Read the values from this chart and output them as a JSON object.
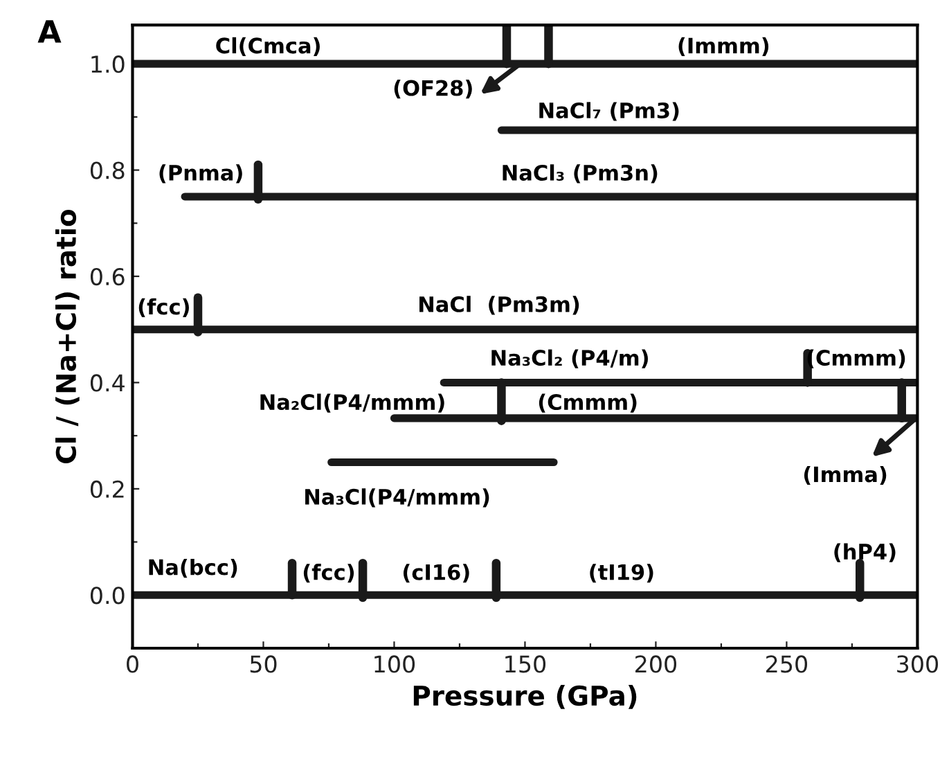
{
  "chart_data": {
    "type": "line",
    "xlabel": "Pressure (GPa)",
    "ylabel": "Cl / (Na+Cl) ratio",
    "xlim": [
      0,
      300
    ],
    "ylim": [
      -0.1,
      1.073
    ],
    "xticks": [
      0,
      {
        "value": 25,
        "label": null
      },
      50,
      {
        "value": 75,
        "label": null
      },
      100,
      {
        "value": 125,
        "label": null
      },
      150,
      {
        "value": 175,
        "label": null
      },
      200,
      {
        "value": 225,
        "label": null
      },
      250,
      {
        "value": 275,
        "label": null
      },
      300
    ],
    "yticks": [
      {
        "value": 0,
        "label": "0.0"
      },
      {
        "value": 0.1,
        "label": null
      },
      {
        "value": 0.2,
        "label": "0.2"
      },
      {
        "value": 0.3,
        "label": null
      },
      {
        "value": 0.4,
        "label": "0.4"
      },
      {
        "value": 0.5,
        "label": null
      },
      {
        "value": 0.6,
        "label": "0.6"
      },
      {
        "value": 0.7,
        "label": null
      },
      {
        "value": 0.8,
        "label": "0.8"
      },
      {
        "value": 0.9,
        "label": null
      },
      {
        "value": 1.0,
        "label": "1.0"
      }
    ],
    "grid": false,
    "legend": false,
    "marker": "none",
    "line_style": "solid",
    "series": [
      {
        "color": "#1a1a1a",
        "x": [
          0,
          300
        ],
        "values": [
          1.0,
          1.0
        ]
      },
      {
        "color": "#1a1a1a",
        "x": [
          141,
          300
        ],
        "values": [
          0.875,
          0.875
        ]
      },
      {
        "color": "#1a1a1a",
        "x": [
          20,
          300
        ],
        "values": [
          0.75,
          0.75
        ]
      },
      {
        "color": "#1a1a1a",
        "x": [
          0,
          300
        ],
        "values": [
          0.5,
          0.5
        ]
      },
      {
        "color": "#1a1a1a",
        "x": [
          119,
          300
        ],
        "values": [
          0.4,
          0.4
        ]
      },
      {
        "color": "#1a1a1a",
        "x": [
          100,
          300
        ],
        "values": [
          0.333,
          0.333
        ]
      },
      {
        "color": "#1a1a1a",
        "x": [
          76,
          161
        ],
        "values": [
          0.25,
          0.25
        ]
      },
      {
        "color": "#1a1a1a",
        "x": [
          0,
          300
        ],
        "values": [
          0.0,
          0.0
        ]
      },
      {
        "color": "#1a1a1a",
        "x": [
          143,
          143
        ],
        "values": [
          1.0,
          1.07
        ]
      },
      {
        "color": "#1a1a1a",
        "x": [
          159,
          159
        ],
        "values": [
          1.0,
          1.07
        ]
      },
      {
        "color": "#1a1a1a",
        "x": [
          48,
          48
        ],
        "values": [
          0.745,
          0.81
        ]
      },
      {
        "color": "#1a1a1a",
        "x": [
          25,
          25
        ],
        "values": [
          0.495,
          0.56
        ]
      },
      {
        "color": "#1a1a1a",
        "x": [
          258,
          258
        ],
        "values": [
          0.4,
          0.455
        ]
      },
      {
        "color": "#1a1a1a",
        "x": [
          141,
          141
        ],
        "values": [
          0.328,
          0.4
        ]
      },
      {
        "color": "#1a1a1a",
        "x": [
          294,
          294
        ],
        "values": [
          0.333,
          0.4
        ]
      },
      {
        "color": "#1a1a1a",
        "x": [
          61,
          61
        ],
        "values": [
          0.0,
          0.06
        ]
      },
      {
        "color": "#1a1a1a",
        "x": [
          88,
          88
        ],
        "values": [
          -0.005,
          0.06
        ]
      },
      {
        "color": "#1a1a1a",
        "x": [
          139,
          139
        ],
        "values": [
          -0.005,
          0.06
        ]
      },
      {
        "color": "#1a1a1a",
        "x": [
          278,
          278
        ],
        "values": [
          -0.005,
          0.06
        ]
      }
    ],
    "annotations": [
      "A",
      "Cl(Cmca)",
      "(Immm)",
      "(OF28)",
      "NaCl₇ (Pm3)",
      "(Pnma)",
      "NaCl₃ (Pm3n)",
      "(fcc)",
      "NaCl  (Pm3m)",
      "Na₃Cl₂ (P4/m)",
      "(Cmmm)",
      "Na₂Cl(P4/mmm)",
      "(Cmmm)",
      "(Imma)",
      "Na₃Cl(P4/mmm)",
      "Na(bcc)",
      "(fcc)",
      "(cI16)",
      "(tI19)",
      "(hP4)"
    ]
  }
}
